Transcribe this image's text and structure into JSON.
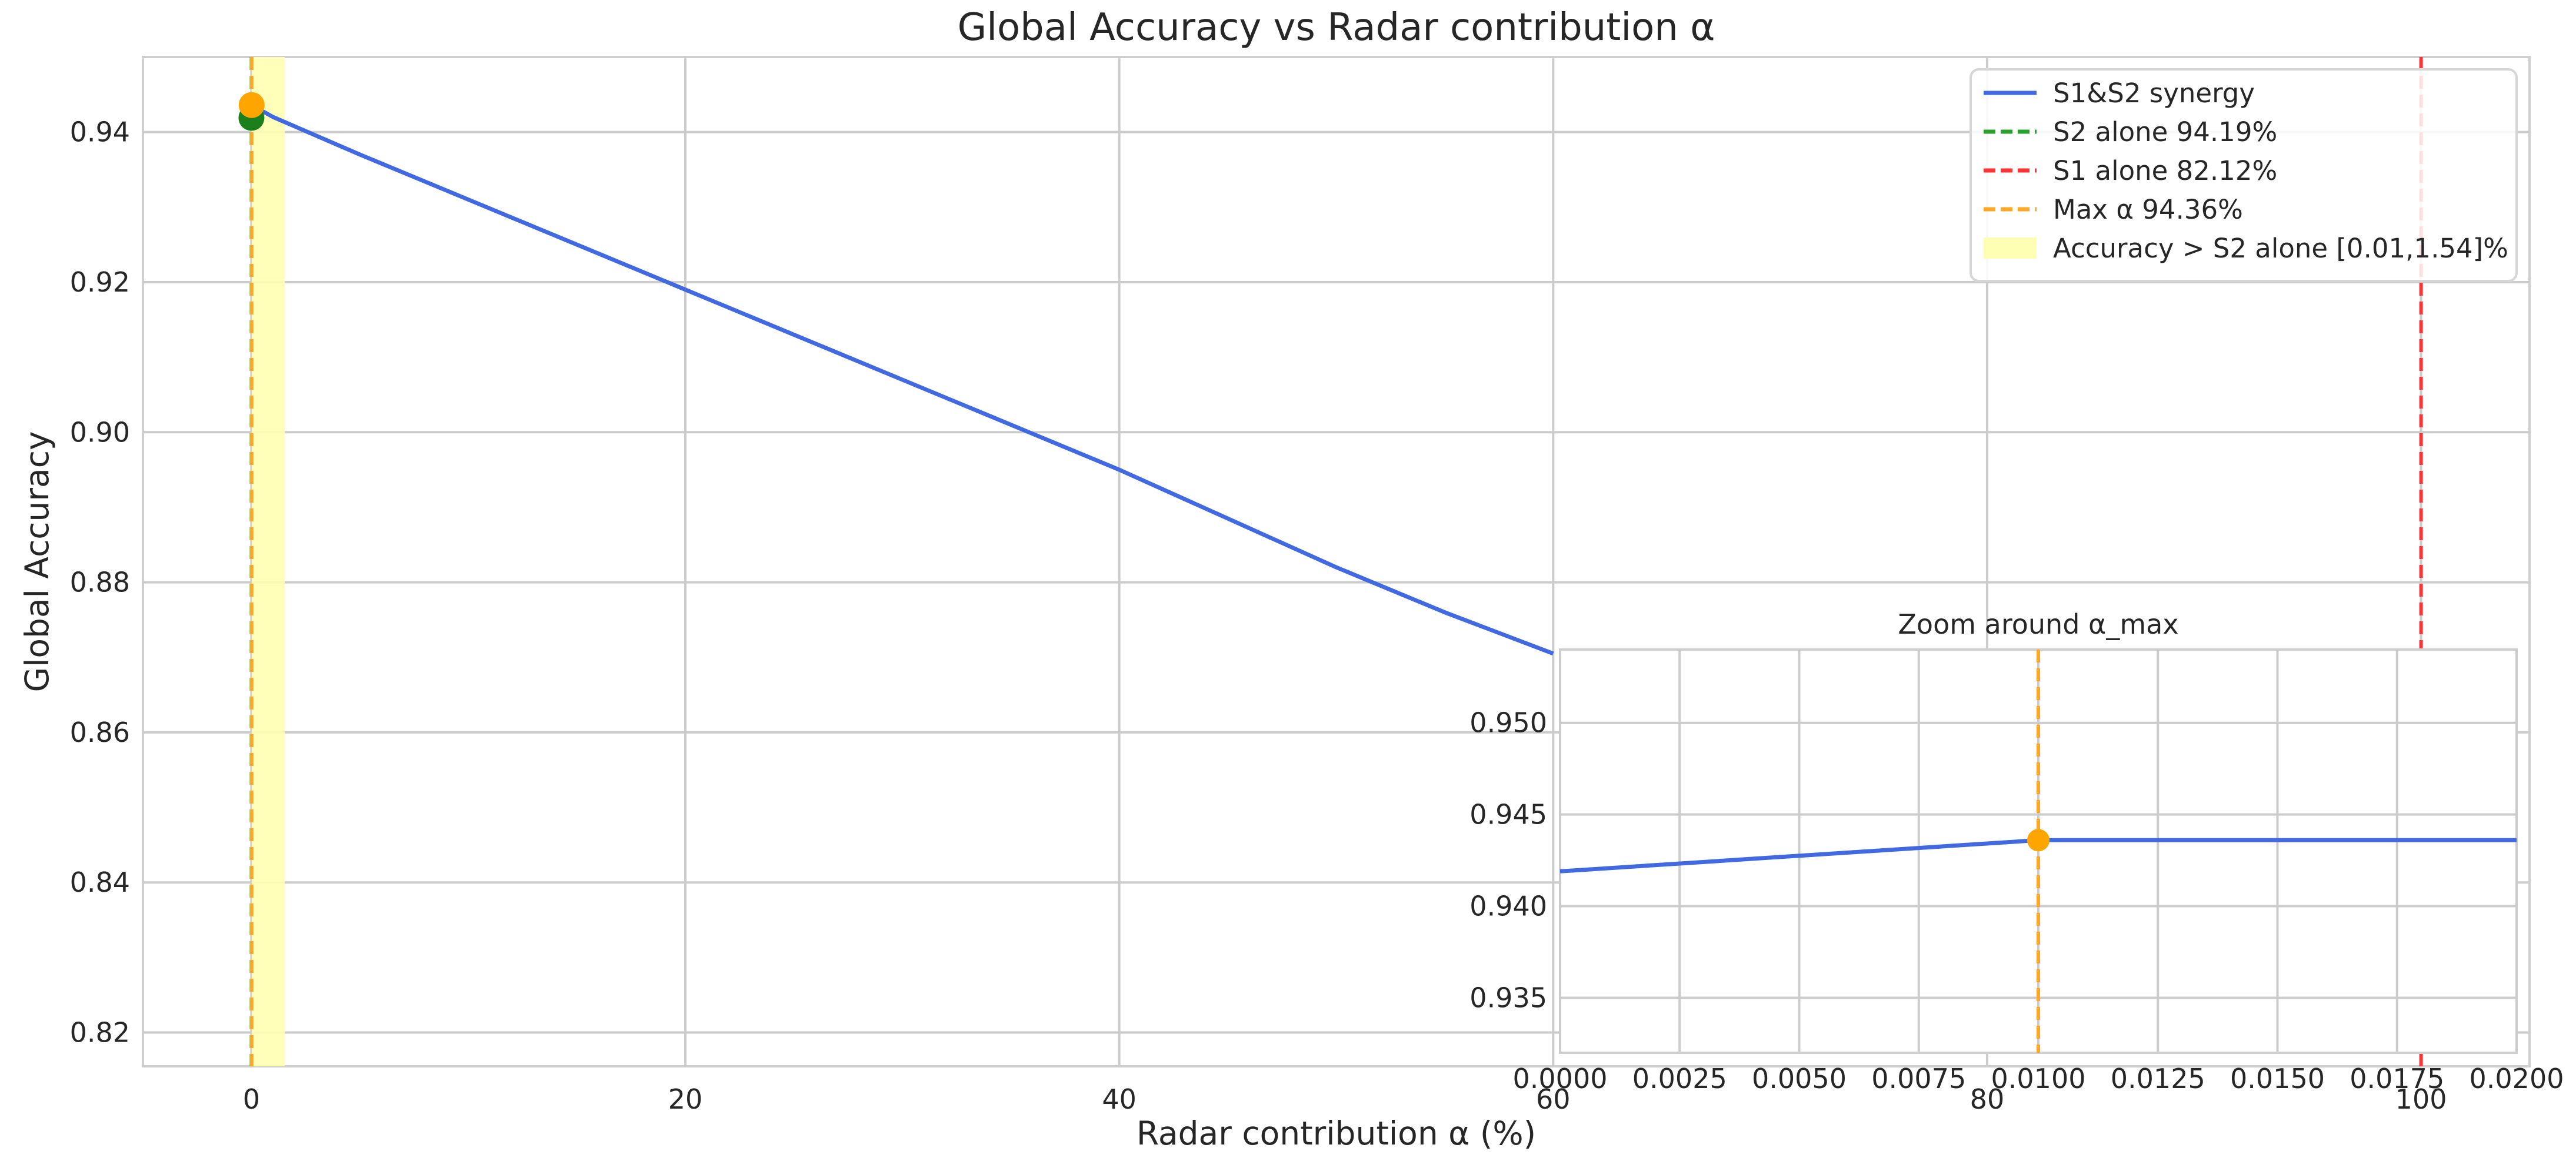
{
  "chart_data": [
    {
      "type": "line",
      "title": "Global Accuracy vs Radar contribution α",
      "xlabel": "Radar contribution α (%)",
      "ylabel": "Global Accuracy",
      "xlim": [
        -5,
        105
      ],
      "ylim": [
        0.8155,
        0.95
      ],
      "xticks": [
        0,
        20,
        40,
        60,
        80,
        100
      ],
      "xtick_labels": [
        "0",
        "20",
        "40",
        "60",
        "80",
        "100"
      ],
      "yticks": [
        0.82,
        0.84,
        0.86,
        0.88,
        0.9,
        0.92,
        0.94
      ],
      "ytick_labels": [
        "0.82",
        "0.84",
        "0.86",
        "0.88",
        "0.90",
        "0.92",
        "0.94"
      ],
      "grid": true,
      "legend_position": "top-right",
      "series": [
        {
          "name": "S1&S2 synergy",
          "color": "#4169e1",
          "x": [
            0,
            0.01,
            1,
            5,
            10,
            15,
            20,
            25,
            30,
            35,
            40,
            45,
            50,
            55,
            60
          ],
          "y": [
            0.9419,
            0.9436,
            0.942,
            0.937,
            0.931,
            0.925,
            0.919,
            0.913,
            0.907,
            0.901,
            0.895,
            0.8885,
            0.882,
            0.876,
            0.8705
          ]
        }
      ],
      "vlines": [
        {
          "name": "S2 alone 94.19%",
          "x": 0,
          "color": "#2ca02c"
        },
        {
          "name": "S1 alone 82.12%",
          "x": 100,
          "color": "#ff3333"
        },
        {
          "name": "Max α 94.36%",
          "x": 0.01,
          "color": "#ffa726"
        }
      ],
      "span": {
        "name": "Accuracy > S2 alone [0.01,1.54]%",
        "x0": 0.01,
        "x1": 1.54,
        "color": "#ffffb3"
      },
      "points": [
        {
          "x": 0,
          "y": 0.9419,
          "color": "#1b7f1b"
        },
        {
          "x": 0.01,
          "y": 0.9436,
          "color": "#ffa500"
        }
      ]
    },
    {
      "type": "line",
      "title": "Zoom around α_max",
      "xlim": [
        0.0,
        0.02
      ],
      "ylim": [
        0.932,
        0.954
      ],
      "xticks": [
        0.0,
        0.0025,
        0.005,
        0.0075,
        0.01,
        0.0125,
        0.015,
        0.0175,
        0.02
      ],
      "xtick_labels": [
        "0.0000",
        "0.0025",
        "0.0050",
        "0.0075",
        "0.0100",
        "0.0125",
        "0.0150",
        "0.0175",
        "0.0200"
      ],
      "yticks": [
        0.935,
        0.94,
        0.945,
        0.95
      ],
      "ytick_labels": [
        "0.935",
        "0.940",
        "0.945",
        "0.950"
      ],
      "grid": true,
      "series": [
        {
          "name": "S1&S2 synergy",
          "color": "#4169e1",
          "x": [
            0.0,
            0.01,
            0.02
          ],
          "y": [
            0.9419,
            0.9436,
            0.9436
          ]
        }
      ],
      "vlines": [
        {
          "x": 0.01,
          "color": "#ffa726"
        }
      ],
      "points": [
        {
          "x": 0.01,
          "y": 0.9436,
          "color": "#ffa500"
        }
      ]
    }
  ]
}
